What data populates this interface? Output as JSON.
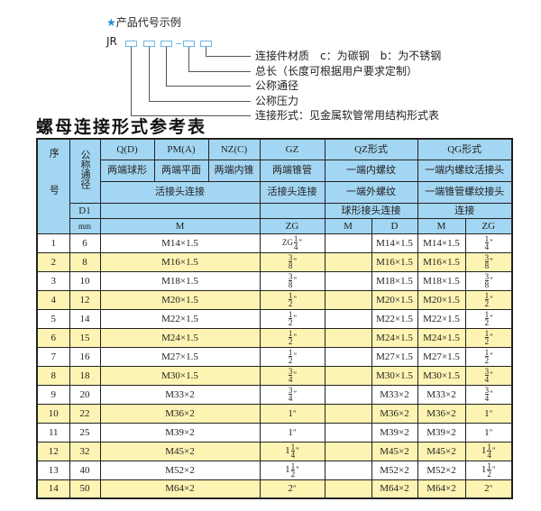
{
  "legend": {
    "title": "产品代号示例",
    "code_prefix": "JR",
    "items": [
      "连接件材质　c：为碳钢　b：为不锈钢",
      "总长（长度可根据用户要求定制）",
      "公称通径",
      "公称压力",
      "连接形式：见金属软管常用结构形式表"
    ]
  },
  "table_title": "螺母连接形式参考表",
  "header": {
    "seq": "序号",
    "nominal": "公称通径",
    "q": "Q(D)",
    "pm": "PM(A)",
    "nz": "NZ(C)",
    "gz": "GZ",
    "qz": "QZ形式",
    "qg": "QG形式",
    "q2": "两端球形",
    "pm2": "两端平面",
    "nz2": "两端内锥",
    "gz2": "两端锥管",
    "qz2": "一端内螺纹",
    "qg2": "一端内螺纹活接头",
    "conn": "活接头连接",
    "gz3": "活接头连接",
    "qz3": "一端外螺纹",
    "qg3": "一端锥管螺纹接头",
    "d1": "D1",
    "qz4": "球形接头连接",
    "qg4": "连接",
    "mm": "mm",
    "m": "M",
    "zg": "ZG",
    "qz_m": "M",
    "qz_d": "D",
    "qg_m": "M",
    "qg_zg": "ZG"
  },
  "rows": [
    {
      "no": "1",
      "dn": "6",
      "m": "M14×1.5",
      "zg": {
        "pre": "ZG",
        "whole": "",
        "num": "1",
        "den": "4"
      },
      "qz_m": "",
      "qz_d": "M14×1.5",
      "qg_m": "M14×1.5",
      "qg_zg": {
        "pre": "",
        "whole": "",
        "num": "1",
        "den": "4"
      }
    },
    {
      "no": "2",
      "dn": "8",
      "m": "M16×1.5",
      "zg": {
        "pre": "",
        "whole": "",
        "num": "3",
        "den": "8"
      },
      "qz_m": "",
      "qz_d": "M16×1.5",
      "qg_m": "M16×1.5",
      "qg_zg": {
        "pre": "",
        "whole": "",
        "num": "3",
        "den": "8"
      }
    },
    {
      "no": "3",
      "dn": "10",
      "m": "M18×1.5",
      "zg": {
        "pre": "",
        "whole": "",
        "num": "3",
        "den": "8"
      },
      "qz_m": "",
      "qz_d": "M18×1.5",
      "qg_m": "M18×1.5",
      "qg_zg": {
        "pre": "",
        "whole": "",
        "num": "3",
        "den": "8"
      }
    },
    {
      "no": "4",
      "dn": "12",
      "m": "M20×1.5",
      "zg": {
        "pre": "",
        "whole": "",
        "num": "1",
        "den": "2"
      },
      "qz_m": "",
      "qz_d": "M20×1.5",
      "qg_m": "M20×1.5",
      "qg_zg": {
        "pre": "",
        "whole": "",
        "num": "1",
        "den": "2"
      }
    },
    {
      "no": "5",
      "dn": "14",
      "m": "M22×1.5",
      "zg": {
        "pre": "",
        "whole": "",
        "num": "1",
        "den": "2"
      },
      "qz_m": "",
      "qz_d": "M22×1.5",
      "qg_m": "M22×1.5",
      "qg_zg": {
        "pre": "",
        "whole": "",
        "num": "1",
        "den": "2"
      }
    },
    {
      "no": "6",
      "dn": "15",
      "m": "M24×1.5",
      "zg": {
        "pre": "",
        "whole": "",
        "num": "1",
        "den": "2"
      },
      "qz_m": "",
      "qz_d": "M24×1.5",
      "qg_m": "M24×1.5",
      "qg_zg": {
        "pre": "",
        "whole": "",
        "num": "1",
        "den": "2"
      }
    },
    {
      "no": "7",
      "dn": "16",
      "m": "M27×1.5",
      "zg": {
        "pre": "",
        "whole": "",
        "num": "1",
        "den": "2"
      },
      "qz_m": "",
      "qz_d": "M27×1.5",
      "qg_m": "M27×1.5",
      "qg_zg": {
        "pre": "",
        "whole": "",
        "num": "1",
        "den": "2"
      }
    },
    {
      "no": "8",
      "dn": "18",
      "m": "M30×1.5",
      "zg": {
        "pre": "",
        "whole": "",
        "num": "3",
        "den": "4"
      },
      "qz_m": "",
      "qz_d": "M30×1.5",
      "qg_m": "M30×1.5",
      "qg_zg": {
        "pre": "",
        "whole": "",
        "num": "3",
        "den": "4"
      }
    },
    {
      "no": "9",
      "dn": "20",
      "m": "M33×2",
      "zg": {
        "pre": "",
        "whole": "",
        "num": "3",
        "den": "4"
      },
      "qz_m": "",
      "qz_d": "M33×2",
      "qg_m": "M33×2",
      "qg_zg": {
        "pre": "",
        "whole": "",
        "num": "3",
        "den": "4"
      }
    },
    {
      "no": "10",
      "dn": "22",
      "m": "M36×2",
      "zg": {
        "pre": "",
        "whole": "1",
        "num": "",
        "den": ""
      },
      "qz_m": "",
      "qz_d": "M36×2",
      "qg_m": "M36×2",
      "qg_zg": {
        "pre": "",
        "whole": "1",
        "num": "",
        "den": ""
      }
    },
    {
      "no": "11",
      "dn": "25",
      "m": "M39×2",
      "zg": {
        "pre": "",
        "whole": "1",
        "num": "",
        "den": ""
      },
      "qz_m": "",
      "qz_d": "M39×2",
      "qg_m": "M39×2",
      "qg_zg": {
        "pre": "",
        "whole": "1",
        "num": "",
        "den": ""
      }
    },
    {
      "no": "12",
      "dn": "32",
      "m": "M45×2",
      "zg": {
        "pre": "",
        "whole": "1",
        "num": "1",
        "den": "4"
      },
      "qz_m": "",
      "qz_d": "M45×2",
      "qg_m": "M45×2",
      "qg_zg": {
        "pre": "",
        "whole": "1",
        "num": "1",
        "den": "4"
      }
    },
    {
      "no": "13",
      "dn": "40",
      "m": "M52×2",
      "zg": {
        "pre": "",
        "whole": "1",
        "num": "1",
        "den": "2"
      },
      "qz_m": "",
      "qz_d": "M52×2",
      "qg_m": "M52×2",
      "qg_zg": {
        "pre": "",
        "whole": "1",
        "num": "1",
        "den": "2"
      }
    },
    {
      "no": "14",
      "dn": "50",
      "m": "M64×2",
      "zg": {
        "pre": "",
        "whole": "2",
        "num": "",
        "den": ""
      },
      "qz_m": "",
      "qz_d": "M64×2",
      "qg_m": "M64×2",
      "qg_zg": {
        "pre": "",
        "whole": "2",
        "num": "",
        "den": ""
      }
    }
  ],
  "inch_mark": "\"",
  "colors": {
    "header_bg": "#a3d6f2",
    "stripe": "#fdf4b3",
    "accent": "#1a8fd8"
  }
}
